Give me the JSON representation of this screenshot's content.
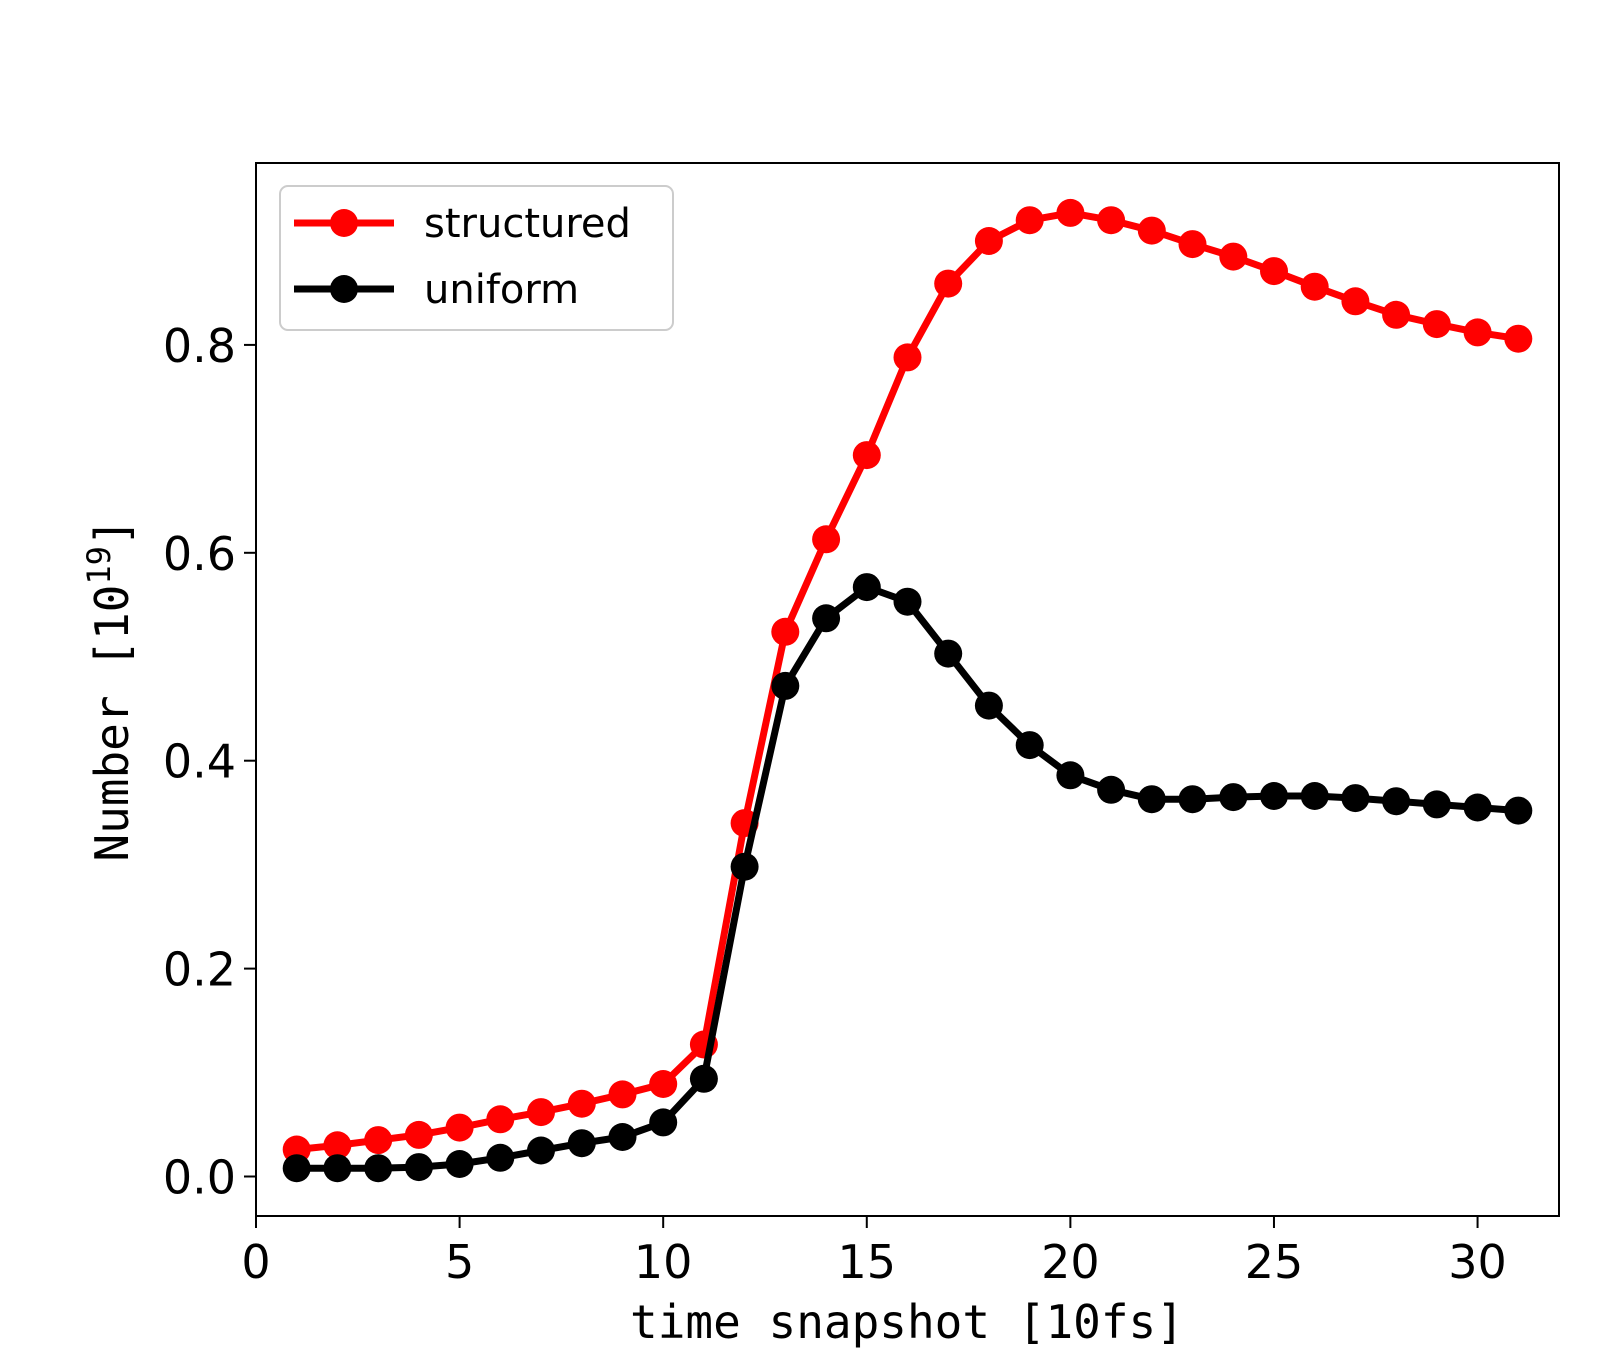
{
  "chart_data": {
    "type": "line",
    "title": "",
    "xlabel": "time snapshot [10fs]",
    "ylabel": {
      "base": "Number [10",
      "exponent": "19",
      "close": "]"
    },
    "xlim": [
      0,
      32
    ],
    "ylim": [
      -0.038,
      0.975
    ],
    "xticks": [
      0,
      5,
      10,
      15,
      20,
      25,
      30
    ],
    "yticks": [
      0.0,
      0.2,
      0.4,
      0.6,
      0.8
    ],
    "ytick_labels": [
      "0.0",
      "0.2",
      "0.4",
      "0.6",
      "0.8"
    ],
    "grid": false,
    "legend": "top-left",
    "x": [
      1,
      2,
      3,
      4,
      5,
      6,
      7,
      8,
      9,
      10,
      11,
      12,
      13,
      14,
      15,
      16,
      17,
      18,
      19,
      20,
      21,
      22,
      23,
      24,
      25,
      26,
      27,
      28,
      29,
      30,
      31
    ],
    "series": [
      {
        "name": "structured",
        "color": "#ff0000",
        "values": [
          0.026,
          0.03,
          0.035,
          0.04,
          0.047,
          0.055,
          0.062,
          0.07,
          0.079,
          0.089,
          0.127,
          0.34,
          0.524,
          0.613,
          0.694,
          0.788,
          0.859,
          0.9,
          0.92,
          0.927,
          0.92,
          0.91,
          0.897,
          0.885,
          0.871,
          0.856,
          0.842,
          0.829,
          0.82,
          0.812,
          0.806
        ]
      },
      {
        "name": "uniform",
        "color": "#000000",
        "values": [
          0.008,
          0.008,
          0.008,
          0.009,
          0.012,
          0.018,
          0.025,
          0.032,
          0.038,
          0.052,
          0.094,
          0.298,
          0.472,
          0.537,
          0.567,
          0.553,
          0.503,
          0.453,
          0.415,
          0.386,
          0.372,
          0.363,
          0.363,
          0.365,
          0.366,
          0.366,
          0.364,
          0.361,
          0.358,
          0.355,
          0.352
        ]
      }
    ]
  }
}
